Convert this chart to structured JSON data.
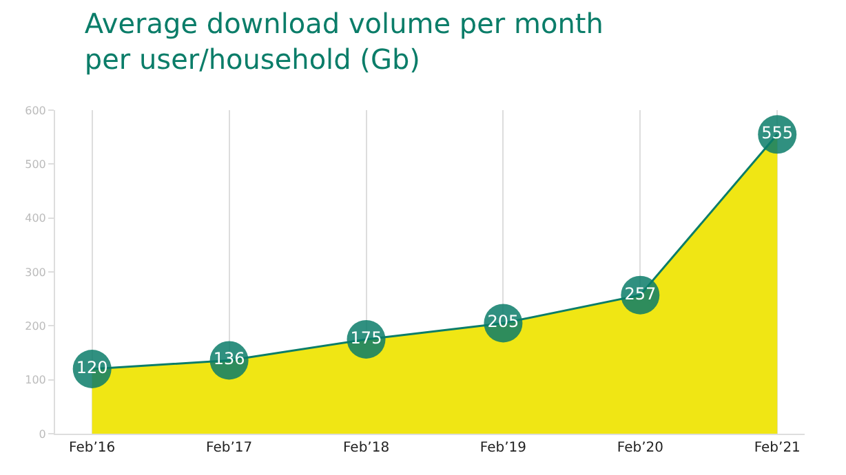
{
  "chart_data": {
    "type": "area",
    "title": "Average download volume per month\nper user/household (Gb)",
    "categories": [
      "Feb’16",
      "Feb’17",
      "Feb’18",
      "Feb’19",
      "Feb’20",
      "Feb’21"
    ],
    "series": [
      {
        "color": "#f0e614",
        "colors": [
          "#0b7d69",
          "#0b7d69",
          "#0b7d69",
          "#0b7d69",
          "#0b7d69",
          "#0b7d69"
        ],
        "values": [
          120,
          136,
          175,
          205,
          257,
          555
        ]
      }
    ],
    "ylim": [
      0,
      600
    ],
    "yticks": [
      0,
      100,
      200,
      300,
      400,
      500,
      600
    ],
    "grid": "x",
    "marker": "circle",
    "data_labels": true
  }
}
